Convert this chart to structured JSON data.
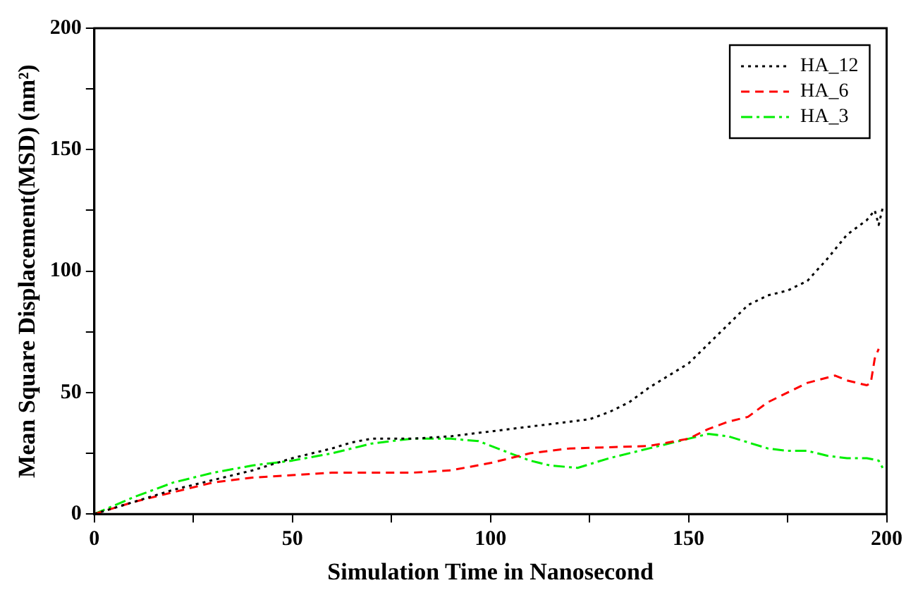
{
  "chart_data": {
    "type": "line",
    "xlabel": "Simulation Time in Nanosecond",
    "ylabel": "Mean Square Displacement(MSD) (nm²)",
    "xlim": [
      0,
      200
    ],
    "ylim": [
      0,
      200
    ],
    "xticks": [
      0,
      {
        "value": 25,
        "label": null
      },
      50,
      {
        "value": 75,
        "label": null
      },
      100,
      {
        "value": 125,
        "label": null
      },
      150,
      {
        "value": 175,
        "label": null
      },
      200
    ],
    "yticks": [
      0,
      {
        "value": 25,
        "label": null
      },
      50,
      {
        "value": 75,
        "label": null
      },
      100,
      {
        "value": 125,
        "label": null
      },
      150,
      {
        "value": 175,
        "label": null
      },
      200
    ],
    "grid": false,
    "legend": "top right",
    "marker": "none",
    "series": [
      {
        "name": "HA_12",
        "color": "#000000",
        "line_style": "dotted",
        "x": [
          0,
          10,
          20,
          30,
          40,
          50,
          60,
          65,
          70,
          80,
          90,
          100,
          110,
          120,
          125,
          130,
          135,
          140,
          145,
          150,
          155,
          160,
          165,
          170,
          175,
          180,
          185,
          190,
          195,
          197,
          198,
          199
        ],
        "values": [
          0,
          5,
          10,
          14,
          18,
          23,
          27,
          29.5,
          31,
          31,
          32,
          34,
          36,
          38,
          39,
          42,
          46,
          52,
          57,
          62,
          70,
          78,
          86,
          90,
          92,
          96,
          105,
          115,
          121,
          125,
          119,
          126
        ]
      },
      {
        "name": "HA_6",
        "color": "#ff0000",
        "line_style": "dashed",
        "x": [
          0,
          10,
          20,
          30,
          40,
          50,
          60,
          70,
          80,
          90,
          100,
          110,
          120,
          130,
          140,
          150,
          155,
          160,
          165,
          170,
          175,
          180,
          187,
          190,
          195,
          196,
          197,
          198
        ],
        "values": [
          0,
          5,
          9,
          13,
          15,
          16,
          17,
          17,
          17,
          18,
          21,
          25,
          27,
          27.5,
          28,
          31,
          35,
          38,
          40,
          46,
          50,
          54,
          57,
          55,
          53,
          54,
          64,
          68
        ]
      },
      {
        "name": "HA_3",
        "color": "#00ee00",
        "line_style": "dashdot",
        "x": [
          0,
          10,
          20,
          30,
          40,
          50,
          60,
          70,
          80,
          90,
          97,
          105,
          110,
          115,
          122,
          130,
          140,
          150,
          155,
          160,
          170,
          175,
          180,
          185,
          190,
          195,
          198,
          199
        ],
        "values": [
          0,
          7,
          13,
          17,
          20,
          22,
          25,
          29,
          31,
          31,
          30,
          25,
          22,
          20,
          19,
          23,
          27,
          31,
          33,
          32,
          27,
          26,
          26,
          24,
          23,
          23,
          22,
          19
        ]
      }
    ]
  }
}
